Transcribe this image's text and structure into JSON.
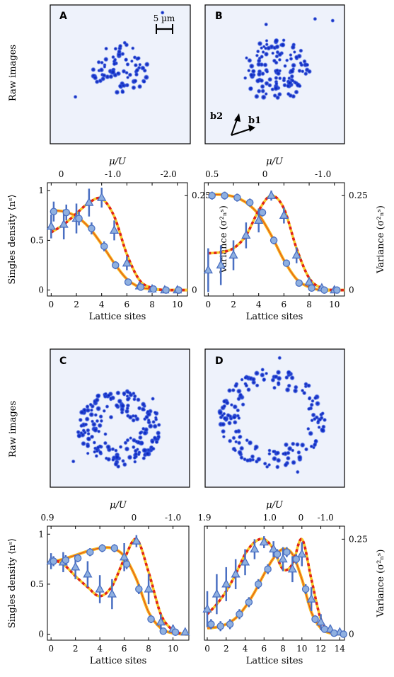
{
  "labels": {
    "raw_images": "Raw images",
    "scale_bar": "5 µm",
    "b1": "b1",
    "b2": "b2",
    "singles_density": "Singles density ⟨nˢ⟩",
    "variance": "Variance (σ²ₙˢ)",
    "mu_over_u": "μ/U",
    "lattice_sites": "Lattice sites"
  },
  "colors": {
    "image_bg": "#eef2fb",
    "atom": "#1a3bd6",
    "data_marker": "#8fb0e0",
    "data_edge": "#4a6fc2",
    "fit_density": "#f6b91d",
    "fit_variance_red": "#e0221a",
    "fit_variance_yellow": "#f6c928"
  },
  "panels": [
    {
      "letter": "A"
    },
    {
      "letter": "B"
    },
    {
      "letter": "C"
    },
    {
      "letter": "D"
    }
  ],
  "chart_data": [
    {
      "type": "scatter",
      "panel": "A",
      "xlabel": "Lattice sites",
      "ylabel_left": "Singles density ⟨nˢ⟩",
      "ylabel_right": "Variance (σ²ₙˢ)",
      "top_axis_label": "μ/U",
      "xlim": [
        -0.3,
        10.8
      ],
      "ylim": [
        -0.06,
        1.08
      ],
      "x_ticks": [
        0,
        2,
        4,
        6,
        8,
        10
      ],
      "y_ticks_left": [
        "0",
        "0.5",
        "1"
      ],
      "y_ticks_right": [
        "0",
        "0.25"
      ],
      "top_ticks": [
        {
          "x": 0.8,
          "label": "0"
        },
        {
          "x": 4.9,
          "label": "-1.0"
        },
        {
          "x": 9.3,
          "label": "-2.0"
        }
      ],
      "density_points": {
        "x": [
          0.2,
          1.2,
          2.2,
          3.2,
          4.2,
          5.1,
          6.1,
          7.1,
          8.1,
          9.1,
          10.1
        ],
        "y": [
          0.79,
          0.78,
          0.72,
          0.62,
          0.44,
          0.25,
          0.08,
          0.03,
          0.01,
          0.0,
          0.0
        ],
        "err": [
          0.1,
          0.08,
          0.07,
          0.06,
          0.05,
          0.04,
          0.03,
          0.02,
          0.01,
          0.01,
          0.01
        ]
      },
      "variance_points": {
        "x": [
          0.0,
          1.0,
          2.0,
          3.0,
          4.0,
          5.0,
          6.0,
          7.0,
          8.0,
          9.0,
          10.0
        ],
        "y": [
          0.64,
          0.66,
          0.72,
          0.88,
          0.93,
          0.6,
          0.27,
          0.04,
          0.01,
          0.0,
          0.0
        ],
        "err": [
          0.12,
          0.15,
          0.15,
          0.14,
          0.1,
          0.1,
          0.07,
          0.04,
          0.02,
          0.01,
          0.01
        ]
      },
      "density_fit": {
        "x": [
          0,
          1,
          2,
          3,
          4,
          5,
          6,
          7,
          8,
          9,
          10,
          10.8
        ],
        "y": [
          0.8,
          0.79,
          0.74,
          0.63,
          0.46,
          0.27,
          0.11,
          0.03,
          0.01,
          0.0,
          0.0,
          0.0
        ]
      },
      "variance_fit": {
        "x": [
          0,
          1,
          2,
          3,
          4,
          5,
          6,
          7,
          8,
          9,
          10,
          10.8
        ],
        "y": [
          0.58,
          0.66,
          0.77,
          0.88,
          0.92,
          0.74,
          0.36,
          0.1,
          0.02,
          0.0,
          0.0,
          0.0
        ]
      }
    },
    {
      "type": "scatter",
      "panel": "B",
      "xlabel": "Lattice sites",
      "ylabel_left": "",
      "ylabel_right": "Variance (σ²ₙˢ)",
      "top_axis_label": "μ/U",
      "xlim": [
        -0.3,
        10.8
      ],
      "ylim": [
        -0.06,
        1.08
      ],
      "x_ticks": [
        0,
        2,
        4,
        6,
        8,
        10
      ],
      "y_ticks_left": [],
      "y_ticks_right": [
        "0",
        "0.25"
      ],
      "top_ticks": [
        {
          "x": 0.3,
          "label": "0.5"
        },
        {
          "x": 4.5,
          "label": "0"
        },
        {
          "x": 9.1,
          "label": "-1.0"
        }
      ],
      "density_points": {
        "x": [
          0.3,
          1.3,
          2.3,
          3.3,
          4.3,
          5.2,
          6.2,
          7.2,
          8.2,
          9.2,
          10.2
        ],
        "y": [
          0.95,
          0.95,
          0.93,
          0.88,
          0.78,
          0.5,
          0.27,
          0.07,
          0.02,
          0.0,
          0.0
        ],
        "err": [
          0.04,
          0.04,
          0.04,
          0.04,
          0.04,
          0.04,
          0.03,
          0.02,
          0.01,
          0.01,
          0.01
        ]
      },
      "variance_points": {
        "x": [
          0.0,
          1.0,
          2.0,
          3.0,
          4.0,
          5.0,
          6.0,
          7.0,
          8.0,
          9.0,
          10.0
        ],
        "y": [
          0.2,
          0.25,
          0.35,
          0.55,
          0.7,
          0.95,
          0.75,
          0.35,
          0.08,
          0.02,
          0.0
        ],
        "err": [
          0.22,
          0.2,
          0.15,
          0.13,
          0.12,
          0.05,
          0.08,
          0.08,
          0.05,
          0.02,
          0.01
        ]
      },
      "density_fit": {
        "x": [
          0,
          1,
          2,
          3,
          4,
          5,
          6,
          7,
          8,
          9,
          10,
          10.8
        ],
        "y": [
          0.96,
          0.96,
          0.94,
          0.88,
          0.76,
          0.55,
          0.3,
          0.11,
          0.03,
          0.0,
          0.0,
          0.0
        ]
      },
      "variance_fit": {
        "x": [
          0,
          1,
          2,
          3,
          4,
          5,
          6,
          7,
          8,
          9,
          10,
          10.8
        ],
        "y": [
          0.37,
          0.38,
          0.42,
          0.55,
          0.8,
          0.95,
          0.82,
          0.42,
          0.12,
          0.02,
          0.0,
          0.0
        ]
      }
    },
    {
      "type": "scatter",
      "panel": "C",
      "xlabel": "Lattice sites",
      "ylabel_left": "Singles density ⟨nˢ⟩",
      "ylabel_right": "",
      "top_axis_label": "μ/U",
      "xlim": [
        -0.3,
        11.3
      ],
      "ylim": [
        -0.06,
        1.08
      ],
      "x_ticks": [
        0,
        2,
        4,
        6,
        8,
        10
      ],
      "y_ticks_left": [
        "0",
        "0.5",
        "1"
      ],
      "y_ticks_right": [],
      "top_ticks": [
        {
          "x": -0.3,
          "label": "0.9"
        },
        {
          "x": 6.8,
          "label": "0"
        },
        {
          "x": 10.0,
          "label": "-1.0"
        }
      ],
      "density_points": {
        "x": [
          0.2,
          1.2,
          2.2,
          3.2,
          4.2,
          5.2,
          6.2,
          7.2,
          8.2,
          9.2,
          10.2
        ],
        "y": [
          0.73,
          0.74,
          0.76,
          0.82,
          0.86,
          0.86,
          0.7,
          0.45,
          0.15,
          0.03,
          0.02
        ],
        "err": [
          0.05,
          0.05,
          0.04,
          0.04,
          0.04,
          0.04,
          0.05,
          0.05,
          0.04,
          0.02,
          0.01
        ]
      },
      "variance_points": {
        "x": [
          0.0,
          1.0,
          2.0,
          3.0,
          4.0,
          5.0,
          6.0,
          7.0,
          8.0,
          9.0,
          10.0,
          11.0
        ],
        "y": [
          0.73,
          0.72,
          0.67,
          0.6,
          0.45,
          0.4,
          0.77,
          0.93,
          0.45,
          0.12,
          0.05,
          0.02
        ],
        "err": [
          0.08,
          0.1,
          0.12,
          0.13,
          0.14,
          0.15,
          0.14,
          0.06,
          0.15,
          0.08,
          0.04,
          0.02
        ]
      },
      "density_fit": {
        "x": [
          0,
          1,
          2,
          3,
          4,
          5,
          6,
          7,
          8,
          9,
          10,
          11,
          11.3
        ],
        "y": [
          0.72,
          0.75,
          0.79,
          0.83,
          0.86,
          0.86,
          0.78,
          0.55,
          0.22,
          0.06,
          0.01,
          0.0,
          0.0
        ]
      },
      "variance_fit": {
        "x": [
          0,
          1,
          2,
          3,
          4,
          5,
          6,
          7,
          8,
          9,
          10,
          11,
          11.3
        ],
        "y": [
          0.75,
          0.7,
          0.58,
          0.47,
          0.38,
          0.48,
          0.75,
          0.95,
          0.62,
          0.2,
          0.04,
          0.0,
          0.0
        ]
      }
    },
    {
      "type": "scatter",
      "panel": "D",
      "xlabel": "Lattice sites",
      "ylabel_left": "",
      "ylabel_right": "Variance (σ²ₙˢ)",
      "top_axis_label": "μ/U",
      "xlim": [
        -0.3,
        14.5
      ],
      "ylim": [
        -0.06,
        1.08
      ],
      "x_ticks": [
        0,
        2,
        4,
        6,
        8,
        10,
        12,
        14
      ],
      "y_ticks_left": [],
      "y_ticks_right": [
        "0",
        "0.25"
      ],
      "top_ticks": [
        {
          "x": -0.3,
          "label": "1.9"
        },
        {
          "x": 6.6,
          "label": "1.0"
        },
        {
          "x": 9.9,
          "label": "0"
        },
        {
          "x": 12.5,
          "label": "-1.0"
        }
      ],
      "density_points": {
        "x": [
          0.4,
          1.4,
          2.4,
          3.4,
          4.4,
          5.4,
          6.4,
          7.4,
          8.4,
          9.4,
          10.4,
          11.4,
          12.4,
          13.4,
          14.4
        ],
        "y": [
          0.1,
          0.08,
          0.1,
          0.2,
          0.32,
          0.5,
          0.65,
          0.8,
          0.82,
          0.75,
          0.45,
          0.15,
          0.05,
          0.01,
          0.0
        ],
        "err": [
          0.05,
          0.05,
          0.05,
          0.05,
          0.05,
          0.05,
          0.05,
          0.05,
          0.05,
          0.05,
          0.05,
          0.04,
          0.03,
          0.01,
          0.01
        ]
      },
      "variance_points": {
        "x": [
          0.0,
          1.0,
          2.0,
          3.0,
          4.0,
          5.0,
          6.0,
          7.0,
          8.0,
          9.0,
          10.0,
          11.0,
          12.0,
          13.0,
          14.0
        ],
        "y": [
          0.25,
          0.4,
          0.5,
          0.6,
          0.72,
          0.85,
          0.92,
          0.85,
          0.75,
          0.65,
          0.8,
          0.35,
          0.12,
          0.05,
          0.02
        ],
        "err": [
          0.18,
          0.2,
          0.17,
          0.15,
          0.13,
          0.1,
          0.06,
          0.08,
          0.12,
          0.13,
          0.12,
          0.12,
          0.08,
          0.04,
          0.02
        ]
      },
      "density_fit": {
        "x": [
          0,
          1,
          2,
          3,
          4,
          5,
          6,
          7,
          8,
          9,
          10,
          11,
          12,
          13,
          14,
          14.5
        ],
        "y": [
          0.06,
          0.07,
          0.1,
          0.16,
          0.27,
          0.42,
          0.6,
          0.76,
          0.85,
          0.8,
          0.55,
          0.22,
          0.06,
          0.01,
          0.0,
          0.0
        ]
      },
      "variance_fit": {
        "x": [
          0,
          1,
          2,
          3,
          4,
          5,
          6,
          7,
          8,
          9,
          10,
          11,
          12,
          13,
          14,
          14.5
        ],
        "y": [
          0.2,
          0.3,
          0.43,
          0.6,
          0.8,
          0.92,
          0.95,
          0.85,
          0.65,
          0.7,
          0.95,
          0.55,
          0.15,
          0.03,
          0.0,
          0.0
        ]
      }
    }
  ]
}
